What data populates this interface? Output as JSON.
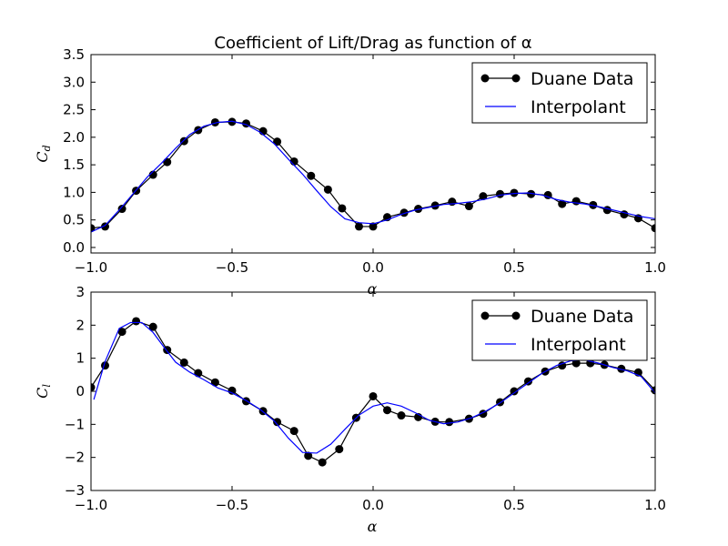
{
  "figure": {
    "title": "Coefficient of Lift/Drag as function of α"
  },
  "chart_data": [
    {
      "type": "line",
      "xlabel": "α",
      "ylabel": "C_d",
      "xlim": [
        -1.0,
        1.0
      ],
      "ylim": [
        -0.1,
        3.5
      ],
      "xticks": [
        -1.0,
        -0.5,
        0.0,
        0.5,
        1.0
      ],
      "xtick_labels": [
        "−1.0",
        "−0.5",
        "0.0",
        "0.5",
        "1.0"
      ],
      "yticks": [
        0.0,
        0.5,
        1.0,
        1.5,
        2.0,
        2.5,
        3.0,
        3.5
      ],
      "ytick_labels": [
        "0.0",
        "0.5",
        "1.0",
        "1.5",
        "2.0",
        "2.5",
        "3.0",
        "3.5"
      ],
      "legend_position": "top-right",
      "series": [
        {
          "name": "Duane Data",
          "style": "line-markers",
          "color": "#000000",
          "x": [
            -1.0,
            -0.95,
            -0.89,
            -0.84,
            -0.78,
            -0.73,
            -0.67,
            -0.62,
            -0.56,
            -0.5,
            -0.45,
            -0.39,
            -0.34,
            -0.28,
            -0.22,
            -0.16,
            -0.11,
            -0.05,
            0.0,
            0.05,
            0.11,
            0.16,
            0.22,
            0.28,
            0.34,
            0.39,
            0.45,
            0.5,
            0.56,
            0.62,
            0.67,
            0.72,
            0.78,
            0.83,
            0.89,
            0.94,
            1.0
          ],
          "y": [
            0.35,
            0.38,
            0.7,
            1.03,
            1.32,
            1.55,
            1.93,
            2.13,
            2.27,
            2.28,
            2.25,
            2.11,
            1.92,
            1.56,
            1.3,
            1.05,
            0.71,
            0.38,
            0.38,
            0.55,
            0.63,
            0.7,
            0.76,
            0.83,
            0.75,
            0.93,
            0.97,
            0.99,
            0.97,
            0.95,
            0.79,
            0.84,
            0.77,
            0.68,
            0.6,
            0.53,
            0.35
          ]
        },
        {
          "name": "Interpolant",
          "style": "line",
          "color": "#0000ff",
          "x": [
            -1.0,
            -0.95,
            -0.9,
            -0.85,
            -0.8,
            -0.75,
            -0.7,
            -0.65,
            -0.6,
            -0.55,
            -0.5,
            -0.45,
            -0.4,
            -0.35,
            -0.3,
            -0.25,
            -0.2,
            -0.15,
            -0.1,
            -0.05,
            0.0,
            0.05,
            0.1,
            0.15,
            0.2,
            0.25,
            0.3,
            0.35,
            0.4,
            0.45,
            0.5,
            0.55,
            0.6,
            0.65,
            0.7,
            0.75,
            0.8,
            0.85,
            0.9,
            0.95,
            1.0
          ],
          "y": [
            0.28,
            0.4,
            0.68,
            0.98,
            1.28,
            1.53,
            1.8,
            2.05,
            2.2,
            2.27,
            2.29,
            2.23,
            2.09,
            1.88,
            1.6,
            1.33,
            1.03,
            0.74,
            0.52,
            0.45,
            0.43,
            0.5,
            0.6,
            0.68,
            0.73,
            0.78,
            0.8,
            0.83,
            0.88,
            0.95,
            0.98,
            0.99,
            0.95,
            0.87,
            0.82,
            0.79,
            0.74,
            0.68,
            0.62,
            0.56,
            0.52
          ]
        }
      ]
    },
    {
      "type": "line",
      "xlabel": "α",
      "ylabel": "C_l",
      "xlim": [
        -1.0,
        1.0
      ],
      "ylim": [
        -3,
        3
      ],
      "xticks": [
        -1.0,
        -0.5,
        0.0,
        0.5,
        1.0
      ],
      "xtick_labels": [
        "−1.0",
        "−0.5",
        "0.0",
        "0.5",
        "1.0"
      ],
      "yticks": [
        -3,
        -2,
        -1,
        0,
        1,
        2,
        3
      ],
      "ytick_labels": [
        "−3",
        "−2",
        "−1",
        "0",
        "1",
        "2",
        "3"
      ],
      "legend_position": "top-right",
      "series": [
        {
          "name": "Duane Data",
          "style": "line-markers",
          "color": "#000000",
          "x": [
            -1.0,
            -0.95,
            -0.89,
            -0.84,
            -0.78,
            -0.73,
            -0.67,
            -0.62,
            -0.56,
            -0.5,
            -0.45,
            -0.39,
            -0.34,
            -0.28,
            -0.23,
            -0.18,
            -0.12,
            -0.06,
            0.0,
            0.05,
            0.1,
            0.16,
            0.22,
            0.27,
            0.34,
            0.39,
            0.45,
            0.5,
            0.55,
            0.61,
            0.67,
            0.72,
            0.77,
            0.82,
            0.88,
            0.94,
            1.0
          ],
          "y": [
            0.12,
            0.78,
            1.8,
            2.12,
            1.95,
            1.25,
            0.87,
            0.55,
            0.27,
            0.02,
            -0.3,
            -0.6,
            -0.93,
            -1.2,
            -1.95,
            -2.15,
            -1.75,
            -0.8,
            -0.15,
            -0.57,
            -0.73,
            -0.78,
            -0.92,
            -0.93,
            -0.83,
            -0.68,
            -0.33,
            0.0,
            0.3,
            0.6,
            0.78,
            0.85,
            0.85,
            0.8,
            0.68,
            0.57,
            0.03
          ]
        },
        {
          "name": "Interpolant",
          "style": "line",
          "color": "#0000ff",
          "x": [
            -0.99,
            -0.95,
            -0.9,
            -0.86,
            -0.82,
            -0.78,
            -0.74,
            -0.7,
            -0.65,
            -0.6,
            -0.55,
            -0.5,
            -0.45,
            -0.4,
            -0.35,
            -0.3,
            -0.25,
            -0.2,
            -0.15,
            -0.1,
            -0.05,
            0.0,
            0.05,
            0.1,
            0.15,
            0.2,
            0.25,
            0.3,
            0.35,
            0.4,
            0.45,
            0.5,
            0.55,
            0.6,
            0.65,
            0.7,
            0.75,
            0.8,
            0.85,
            0.9,
            0.95,
            1.0
          ],
          "y": [
            -0.25,
            0.9,
            1.9,
            2.08,
            2.08,
            1.78,
            1.32,
            0.88,
            0.58,
            0.35,
            0.1,
            -0.05,
            -0.28,
            -0.55,
            -0.9,
            -1.42,
            -1.85,
            -1.87,
            -1.6,
            -1.15,
            -0.72,
            -0.45,
            -0.35,
            -0.45,
            -0.65,
            -0.88,
            -0.98,
            -0.93,
            -0.8,
            -0.6,
            -0.35,
            -0.05,
            0.25,
            0.55,
            0.78,
            0.92,
            0.95,
            0.85,
            0.72,
            0.62,
            0.45,
            -0.05
          ]
        }
      ]
    }
  ]
}
